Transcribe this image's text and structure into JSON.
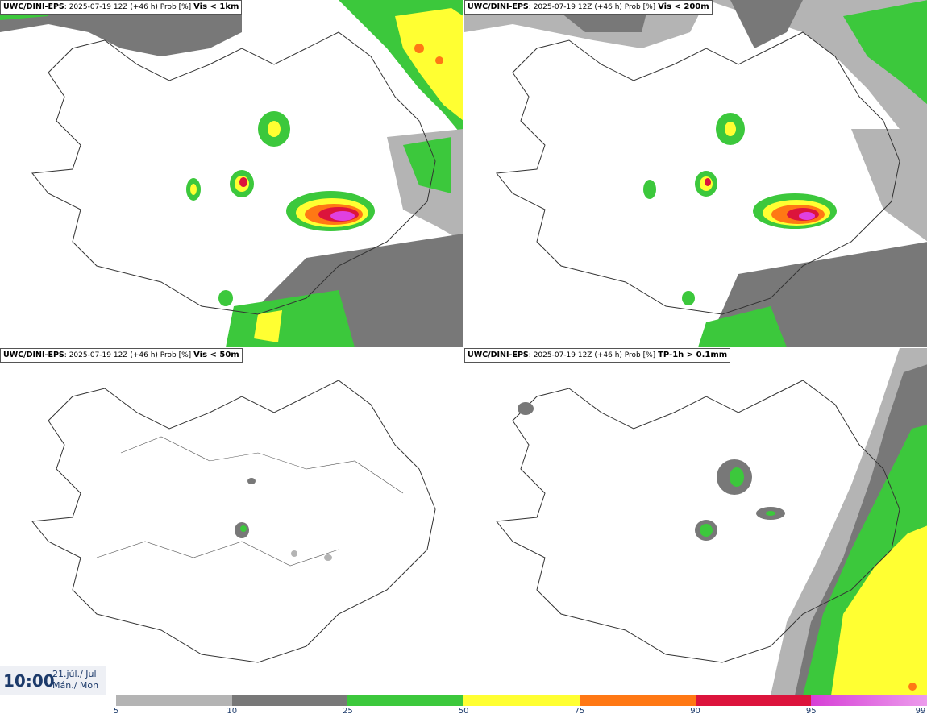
{
  "panels": [
    {
      "id": "vis1km",
      "model": "UWC/DINI-EPS",
      "run": "2025-07-19 12Z (+46 h) Prob [%]",
      "variable": "Vis < 1km"
    },
    {
      "id": "vis200",
      "model": "UWC/DINI-EPS",
      "run": "2025-07-19 12Z (+46 h) Prob [%]",
      "variable": "Vis < 200m"
    },
    {
      "id": "vis50",
      "model": "UWC/DINI-EPS",
      "run": "2025-07-19 12Z (+46 h) Prob [%]",
      "variable": "Vis < 50m"
    },
    {
      "id": "tp1h",
      "model": "UWC/DINI-EPS",
      "run": "2025-07-19 12Z (+46 h) Prob [%]",
      "variable": "TP-1h > 0.1mm"
    }
  ],
  "valid_time": {
    "time": "10:00",
    "date": "21.júl./ Jul",
    "weekday": "Mán./ Mon"
  },
  "colorbar": {
    "ticks": [
      "5",
      "10",
      "25",
      "50",
      "75",
      "90",
      "95",
      "99"
    ],
    "colors": [
      "#b4b4b4",
      "#787878",
      "#3cc83c",
      "#ffff32",
      "#ff7814",
      "#dc143c",
      "#e040e0",
      "#f0b4f0"
    ]
  }
}
